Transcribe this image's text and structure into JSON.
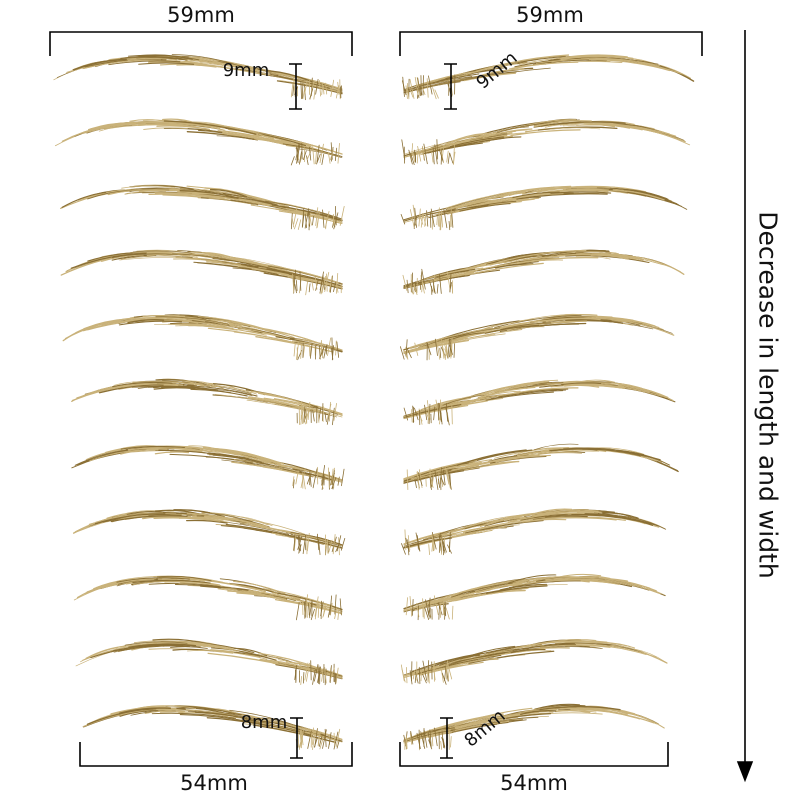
{
  "left_column": {
    "top_width": "59mm",
    "top_height": "9mm",
    "bottom_width": "54mm",
    "bottom_height": "8mm"
  },
  "right_column": {
    "top_width": "59mm",
    "top_height": "9mm",
    "bottom_width": "54mm",
    "bottom_height": "8mm"
  },
  "arrow_caption": "Decrease in length and width",
  "brow_rows_per_column": 11,
  "colors": {
    "brow_light": "#c9b27a",
    "brow_dark": "#8a6f35",
    "line": "#000000"
  }
}
